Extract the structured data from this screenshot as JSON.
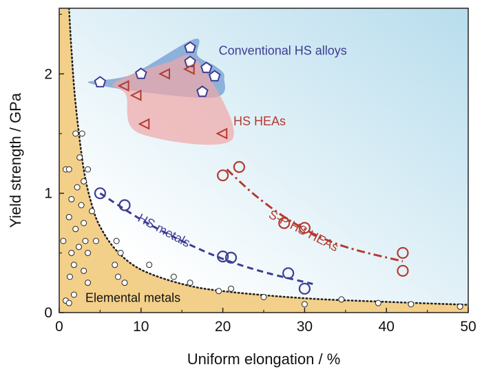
{
  "chart_data": {
    "type": "scatter",
    "title": "",
    "xlabel": "Uniform elongation / %",
    "ylabel": "Yield strength / GPa",
    "xlim": [
      0,
      50
    ],
    "ylim": [
      0,
      2.55
    ],
    "xticks": [
      0,
      10,
      20,
      30,
      40,
      50
    ],
    "yticks": [
      0,
      1,
      2
    ],
    "grid": false,
    "legend": "none",
    "colors": {
      "elemental": "#f3d08a",
      "conventional": "#3d3d93",
      "conventional_fill": "#7ea6d6",
      "hs_heas": "#b53a2e",
      "hs_heas_fill": "#f1a7a7",
      "hs_metals": "#3d3d93",
      "sp_heas": "#b53a2e",
      "background_start": "#ffffff",
      "background_end": "#b8dded"
    },
    "series": [
      {
        "name": "Conventional HS alloys",
        "marker": "pentagon",
        "points": [
          [
            5,
            1.93
          ],
          [
            10,
            2.0
          ],
          [
            16,
            2.22
          ],
          [
            16,
            2.1
          ],
          [
            18,
            2.05
          ],
          [
            19,
            1.98
          ],
          [
            17.5,
            1.85
          ]
        ]
      },
      {
        "name": "HS HEAs",
        "marker": "triangle-left",
        "points": [
          [
            8,
            1.9
          ],
          [
            9.5,
            1.82
          ],
          [
            10.5,
            1.58
          ],
          [
            13,
            2.0
          ],
          [
            16,
            2.04
          ],
          [
            20,
            1.5
          ]
        ]
      },
      {
        "name": "HS metals",
        "marker": "circle",
        "points": [
          [
            5,
            1.0
          ],
          [
            8,
            0.9
          ],
          [
            20,
            0.47
          ],
          [
            21,
            0.46
          ],
          [
            28,
            0.33
          ],
          [
            30,
            0.2
          ]
        ],
        "trend": [
          [
            5,
            1.0
          ],
          [
            10,
            0.78
          ],
          [
            15,
            0.6
          ],
          [
            20,
            0.45
          ],
          [
            25,
            0.34
          ],
          [
            31,
            0.24
          ]
        ]
      },
      {
        "name": "S-P HS HEAs",
        "marker": "circle",
        "points": [
          [
            20,
            1.15
          ],
          [
            22,
            1.22
          ],
          [
            27.5,
            0.75
          ],
          [
            30,
            0.71
          ],
          [
            42,
            0.5
          ],
          [
            42,
            0.35
          ]
        ],
        "trend": [
          [
            20.5,
            1.2
          ],
          [
            24,
            0.98
          ],
          [
            28,
            0.78
          ],
          [
            32,
            0.63
          ],
          [
            36,
            0.53
          ],
          [
            42,
            0.43
          ]
        ]
      },
      {
        "name": "Elemental metals",
        "marker": "small-circle",
        "points": [
          [
            0.5,
            0.6
          ],
          [
            0.8,
            1.2
          ],
          [
            1.2,
            1.2
          ],
          [
            1.5,
            0.95
          ],
          [
            1.2,
            0.8
          ],
          [
            1.5,
            0.5
          ],
          [
            1.8,
            0.4
          ],
          [
            1.3,
            0.3
          ],
          [
            2,
            1.5
          ],
          [
            2.8,
            1.5
          ],
          [
            2.5,
            1.3
          ],
          [
            3,
            1.1
          ],
          [
            3.5,
            1.2
          ],
          [
            2.2,
            1.05
          ],
          [
            2.7,
            0.9
          ],
          [
            3,
            0.75
          ],
          [
            3.2,
            0.6
          ],
          [
            3.5,
            0.5
          ],
          [
            4,
            0.85
          ],
          [
            4.5,
            0.6
          ],
          [
            2,
            0.7
          ],
          [
            2.4,
            0.55
          ],
          [
            3,
            0.35
          ],
          [
            3.5,
            0.25
          ],
          [
            1.8,
            0.15
          ],
          [
            0.8,
            0.1
          ],
          [
            1.2,
            0.08
          ],
          [
            7,
            0.6
          ],
          [
            7.5,
            0.5
          ],
          [
            6.8,
            0.4
          ],
          [
            7.2,
            0.3
          ],
          [
            8,
            0.25
          ],
          [
            11,
            0.4
          ],
          [
            14,
            0.3
          ],
          [
            16,
            0.25
          ],
          [
            19.5,
            0.18
          ],
          [
            21,
            0.2
          ],
          [
            25,
            0.13
          ],
          [
            30,
            0.07
          ],
          [
            34.5,
            0.11
          ],
          [
            39,
            0.08
          ],
          [
            43,
            0.07
          ],
          [
            49,
            0.05
          ]
        ],
        "boundary": [
          [
            1.2,
            2.55
          ],
          [
            1.5,
            2.2
          ],
          [
            2,
            1.75
          ],
          [
            3,
            1.2
          ],
          [
            4,
            0.9
          ],
          [
            5,
            0.72
          ],
          [
            7,
            0.52
          ],
          [
            10,
            0.36
          ],
          [
            15,
            0.24
          ],
          [
            20,
            0.18
          ],
          [
            30,
            0.12
          ],
          [
            40,
            0.09
          ],
          [
            50,
            0.065
          ]
        ]
      }
    ],
    "annotations": [
      {
        "text": "Conventional HS alloys",
        "x": 19.5,
        "y": 2.16
      },
      {
        "text": "HS HEAs",
        "x": 21.3,
        "y": 1.57
      },
      {
        "text": "HS metals",
        "x": 9.5,
        "y": 0.77,
        "rotate": 28
      },
      {
        "text": "S-P HS HEAs",
        "x": 25.5,
        "y": 0.8,
        "rotate": 27
      },
      {
        "text": "Elemental metals",
        "x": 3.2,
        "y": 0.09
      }
    ]
  }
}
